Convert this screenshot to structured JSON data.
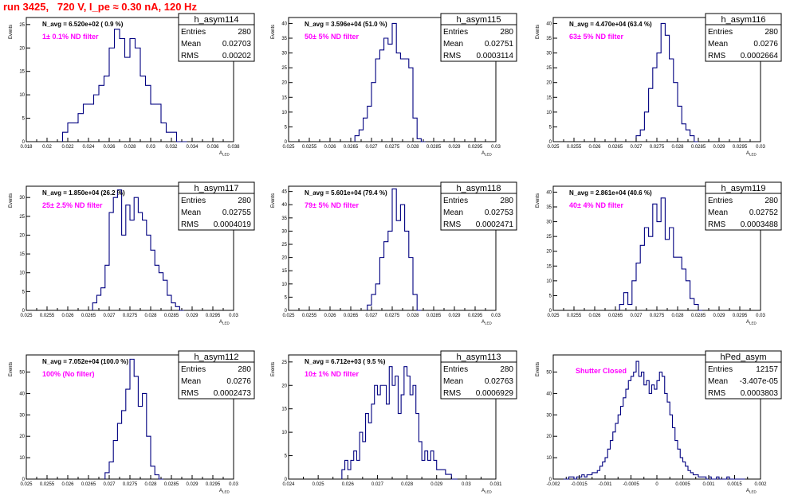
{
  "title": "run 3425,   720 V, I_pe ≈ 0.30 nA, 120 Hz",
  "stat_labels": {
    "entries": "Entries",
    "mean": "Mean",
    "rms": "RMS"
  },
  "colors": {
    "title": "#ff0000",
    "filter_label": "#ff00ff",
    "histogram": "#000080",
    "frame": "#000000"
  },
  "chart_data": [
    {
      "type": "histogram",
      "name": "h_asym114",
      "navg": "N_avg = 6.520e+02 ( 0.9 %)",
      "filter": "1± 0.1% ND filter",
      "stats": {
        "entries": "280",
        "mean": "0.02703",
        "rms": "0.00202"
      },
      "xlabel": "A_LED",
      "ylabel": "Events",
      "xlim": [
        0.018,
        0.038
      ],
      "ylim": [
        0,
        26.5
      ],
      "xticks": [
        0.018,
        0.02,
        0.022,
        0.024,
        0.026,
        0.028,
        0.03,
        0.032,
        0.034,
        0.036,
        0.038
      ],
      "xtick_labels": [
        "0.018",
        "0.02",
        "0.022",
        "0.024",
        "0.026",
        "0.028",
        "0.03",
        "0.032",
        "0.034",
        "0.036",
        "0.038"
      ],
      "yticks": [
        0,
        5,
        10,
        15,
        20,
        25
      ],
      "bins": [
        0.0215,
        0.022,
        0.0225,
        0.023,
        0.0235,
        0.024,
        0.0245,
        0.025,
        0.0255,
        0.026,
        0.0265,
        0.027,
        0.0275,
        0.028,
        0.0285,
        0.029,
        0.0295,
        0.03,
        0.0305,
        0.031,
        0.0315,
        0.032,
        0.0325,
        0.033
      ],
      "counts": [
        2,
        4,
        4,
        6,
        8,
        8,
        10,
        12,
        14,
        20,
        24,
        22,
        18,
        22,
        20,
        14,
        12,
        8,
        8,
        4,
        2,
        2,
        0,
        0
      ]
    },
    {
      "type": "histogram",
      "name": "h_asym115",
      "navg": "N_avg = 3.596e+04 (51.0 %)",
      "filter": "50± 5% ND filter",
      "stats": {
        "entries": "280",
        "mean": "0.02751",
        "rms": "0.0003114"
      },
      "xlabel": "A_LED",
      "ylabel": "Events",
      "xlim": [
        0.025,
        0.03
      ],
      "ylim": [
        0,
        42
      ],
      "xticks": [
        0.025,
        0.0255,
        0.026,
        0.0265,
        0.027,
        0.0275,
        0.028,
        0.0285,
        0.029,
        0.0295,
        0.03
      ],
      "xtick_labels": [
        "0.025",
        "0.0255",
        "0.026",
        "0.0265",
        "0.027",
        "0.0275",
        "0.028",
        "0.0285",
        "0.029",
        "0.0295",
        "0.03"
      ],
      "yticks": [
        0,
        5,
        10,
        15,
        20,
        25,
        30,
        35,
        40
      ],
      "bins": [
        0.0266,
        0.0267,
        0.0268,
        0.0269,
        0.027,
        0.0271,
        0.0272,
        0.0273,
        0.0274,
        0.0275,
        0.0276,
        0.0277,
        0.0278,
        0.0279,
        0.028,
        0.0281,
        0.0282
      ],
      "counts": [
        2,
        4,
        8,
        12,
        20,
        28,
        31,
        35,
        33,
        40,
        30,
        28,
        28,
        25,
        8,
        1,
        0
      ]
    },
    {
      "type": "histogram",
      "name": "h_asym116",
      "navg": "N_avg = 4.470e+04 (63.4 %)",
      "filter": "63± 5% ND filter",
      "stats": {
        "entries": "280",
        "mean": "0.0276",
        "rms": "0.0002664"
      },
      "xlabel": "A_LED",
      "ylabel": "Events",
      "xlim": [
        0.025,
        0.03
      ],
      "ylim": [
        0,
        42
      ],
      "xticks": [
        0.025,
        0.0255,
        0.026,
        0.0265,
        0.027,
        0.0275,
        0.028,
        0.0285,
        0.029,
        0.0295,
        0.03
      ],
      "xtick_labels": [
        "0.025",
        "0.0255",
        "0.026",
        "0.0265",
        "0.027",
        "0.0275",
        "0.028",
        "0.0285",
        "0.029",
        "0.0295",
        "0.03"
      ],
      "yticks": [
        0,
        5,
        10,
        15,
        20,
        25,
        30,
        35,
        40
      ],
      "bins": [
        0.027,
        0.0271,
        0.0272,
        0.0273,
        0.0274,
        0.0275,
        0.0276,
        0.0277,
        0.0278,
        0.0279,
        0.028,
        0.0281,
        0.0282,
        0.0283,
        0.0284
      ],
      "counts": [
        2,
        4,
        10,
        18,
        25,
        30,
        40,
        36,
        28,
        20,
        12,
        6,
        4,
        2,
        0
      ]
    },
    {
      "type": "histogram",
      "name": "h_asym117",
      "navg": "N_avg = 1.850e+04 (26.2 %)",
      "filter": "25± 2.5% ND filter",
      "stats": {
        "entries": "280",
        "mean": "0.02755",
        "rms": "0.0004019"
      },
      "xlabel": "A_LED",
      "ylabel": "Events",
      "xlim": [
        0.025,
        0.03
      ],
      "ylim": [
        0,
        33
      ],
      "xticks": [
        0.025,
        0.0255,
        0.026,
        0.0265,
        0.027,
        0.0275,
        0.028,
        0.0285,
        0.029,
        0.0295,
        0.03
      ],
      "xtick_labels": [
        "0.025",
        "0.0255",
        "0.026",
        "0.0265",
        "0.027",
        "0.0275",
        "0.028",
        "0.0285",
        "0.029",
        "0.0295",
        "0.03"
      ],
      "yticks": [
        0,
        5,
        10,
        15,
        20,
        25,
        30
      ],
      "bins": [
        0.0266,
        0.0267,
        0.0268,
        0.0269,
        0.027,
        0.0271,
        0.0272,
        0.0273,
        0.0274,
        0.0275,
        0.0276,
        0.0277,
        0.0278,
        0.0279,
        0.028,
        0.0281,
        0.0282,
        0.0283,
        0.0284,
        0.0285,
        0.0286,
        0.0287
      ],
      "counts": [
        2,
        4,
        6,
        12,
        26,
        30,
        32,
        20,
        28,
        24,
        30,
        26,
        24,
        20,
        16,
        12,
        10,
        8,
        4,
        2,
        1,
        0
      ]
    },
    {
      "type": "histogram",
      "name": "h_asym118",
      "navg": "N_avg = 5.601e+04 (79.4 %)",
      "filter": "79± 5% ND filter",
      "stats": {
        "entries": "280",
        "mean": "0.02753",
        "rms": "0.0002471"
      },
      "xlabel": "A_LED",
      "ylabel": "Events",
      "xlim": [
        0.025,
        0.03
      ],
      "ylim": [
        0,
        47
      ],
      "xticks": [
        0.025,
        0.0255,
        0.026,
        0.0265,
        0.027,
        0.0275,
        0.028,
        0.0285,
        0.029,
        0.0295,
        0.03
      ],
      "xtick_labels": [
        "0.025",
        "0.0255",
        "0.026",
        "0.0265",
        "0.027",
        "0.0275",
        "0.028",
        "0.0285",
        "0.029",
        "0.0295",
        "0.03"
      ],
      "yticks": [
        0,
        5,
        10,
        15,
        20,
        25,
        30,
        35,
        40,
        45
      ],
      "bins": [
        0.0269,
        0.027,
        0.0271,
        0.0272,
        0.0273,
        0.0274,
        0.0275,
        0.0276,
        0.0277,
        0.0278,
        0.0279,
        0.028,
        0.0281
      ],
      "counts": [
        2,
        6,
        10,
        20,
        26,
        30,
        46,
        34,
        40,
        30,
        20,
        6,
        0
      ]
    },
    {
      "type": "histogram",
      "name": "h_asym119",
      "navg": "N_avg = 2.861e+04 (40.6 %)",
      "filter": "40± 4% ND filter",
      "stats": {
        "entries": "280",
        "mean": "0.02752",
        "rms": "0.0003488"
      },
      "xlabel": "A_LED",
      "ylabel": "Events",
      "xlim": [
        0.025,
        0.03
      ],
      "ylim": [
        0,
        42
      ],
      "xticks": [
        0.025,
        0.0255,
        0.026,
        0.0265,
        0.027,
        0.0275,
        0.028,
        0.0285,
        0.029,
        0.0295,
        0.03
      ],
      "xtick_labels": [
        "0.025",
        "0.0255",
        "0.026",
        "0.0265",
        "0.027",
        "0.0275",
        "0.028",
        "0.0285",
        "0.029",
        "0.0295",
        "0.03"
      ],
      "yticks": [
        0,
        5,
        10,
        15,
        20,
        25,
        30,
        35,
        40
      ],
      "bins": [
        0.0266,
        0.0267,
        0.0268,
        0.0269,
        0.027,
        0.0271,
        0.0272,
        0.0273,
        0.0274,
        0.0275,
        0.0276,
        0.0277,
        0.0278,
        0.0279,
        0.028,
        0.0281,
        0.0282,
        0.0283,
        0.0284,
        0.0285
      ],
      "counts": [
        2,
        6,
        2,
        10,
        16,
        22,
        28,
        25,
        36,
        30,
        38,
        24,
        28,
        18,
        18,
        14,
        10,
        4,
        2,
        0
      ]
    },
    {
      "type": "histogram",
      "name": "h_asym112",
      "navg": "N_avg = 7.052e+04 (100.0 %)",
      "filter": "100% (No filter)",
      "stats": {
        "entries": "280",
        "mean": "0.0276",
        "rms": "0.0002473"
      },
      "xlabel": "A_LED",
      "ylabel": "Events",
      "xlim": [
        0.025,
        0.03
      ],
      "ylim": [
        0,
        58
      ],
      "xticks": [
        0.025,
        0.0255,
        0.026,
        0.0265,
        0.027,
        0.0275,
        0.028,
        0.0285,
        0.029,
        0.0295,
        0.03
      ],
      "xtick_labels": [
        "0.025",
        "0.0255",
        "0.026",
        "0.0265",
        "0.027",
        "0.0275",
        "0.028",
        "0.0285",
        "0.029",
        "0.0295",
        "0.03"
      ],
      "yticks": [
        0,
        10,
        20,
        30,
        40,
        50
      ],
      "bins": [
        0.0269,
        0.027,
        0.0271,
        0.0272,
        0.0273,
        0.0274,
        0.0275,
        0.0276,
        0.0277,
        0.0278,
        0.0279,
        0.028,
        0.0281,
        0.0282
      ],
      "counts": [
        3,
        8,
        18,
        26,
        32,
        42,
        56,
        48,
        34,
        40,
        20,
        6,
        2,
        0
      ]
    },
    {
      "type": "histogram",
      "name": "h_asym113",
      "navg": "N_avg = 6.712e+03 ( 9.5 %)",
      "filter": "10± 1% ND filter",
      "stats": {
        "entries": "280",
        "mean": "0.02763",
        "rms": "0.0006929"
      },
      "xlabel": "A_LED",
      "ylabel": "Events",
      "xlim": [
        0.024,
        0.031
      ],
      "ylim": [
        0,
        26.5
      ],
      "xticks": [
        0.024,
        0.025,
        0.026,
        0.027,
        0.028,
        0.029,
        0.03,
        0.031
      ],
      "xtick_labels": [
        "0.024",
        "0.025",
        "0.026",
        "0.027",
        "0.028",
        "0.029",
        "0.03",
        "0.031"
      ],
      "yticks": [
        0,
        5,
        10,
        15,
        20,
        25
      ],
      "bins": [
        0.0258,
        0.0259,
        0.026,
        0.0261,
        0.0262,
        0.0263,
        0.0264,
        0.0265,
        0.0266,
        0.0267,
        0.0268,
        0.0269,
        0.027,
        0.0271,
        0.0272,
        0.0273,
        0.0274,
        0.0275,
        0.0276,
        0.0277,
        0.0278,
        0.0279,
        0.028,
        0.0281,
        0.0282,
        0.0283,
        0.0284,
        0.0285,
        0.0286,
        0.0287,
        0.0288,
        0.0289,
        0.029,
        0.0291,
        0.0292,
        0.0293,
        0.0294,
        0.0295,
        0.0296
      ],
      "counts": [
        2,
        4,
        2,
        4,
        6,
        4,
        10,
        8,
        14,
        12,
        16,
        20,
        18,
        20,
        20,
        16,
        24,
        20,
        22,
        14,
        18,
        24,
        22,
        18,
        20,
        14,
        8,
        4,
        6,
        4,
        6,
        4,
        2,
        2,
        2,
        1,
        1,
        0,
        0
      ]
    },
    {
      "type": "histogram",
      "name": "hPed_asym",
      "navg": "",
      "filter": "Shutter Closed",
      "stats": {
        "entries": "12157",
        "mean": "-3.407e-05",
        "rms": "0.0003803"
      },
      "xlabel": "A_LED",
      "ylabel": "Events",
      "xlim": [
        -0.002,
        0.002
      ],
      "ylim": [
        0,
        58
      ],
      "xticks": [
        -0.002,
        -0.0015,
        -0.001,
        -0.0005,
        0,
        0.0005,
        0.001,
        0.0015,
        0.002
      ],
      "xtick_labels": [
        "-0.002",
        "-0.0015",
        "-0.001",
        "-0.0005",
        "0",
        "0.0005",
        "0.001",
        "0.0015",
        "0.002"
      ],
      "yticks": [
        0,
        10,
        20,
        30,
        40,
        50
      ],
      "bins": [
        -0.0018,
        -0.00175,
        -0.0017,
        -0.00165,
        -0.0016,
        -0.00155,
        -0.0015,
        -0.00145,
        -0.0014,
        -0.00135,
        -0.0013,
        -0.00125,
        -0.0012,
        -0.00115,
        -0.0011,
        -0.00105,
        -0.001,
        -0.00095,
        -0.0009,
        -0.00085,
        -0.0008,
        -0.00075,
        -0.0007,
        -0.00065,
        -0.0006,
        -0.00055,
        -0.0005,
        -0.00045,
        -0.0004,
        -0.00035,
        -0.0003,
        -0.00025,
        -0.0002,
        -0.00015,
        -0.0001,
        -5e-05,
        0,
        5e-05,
        0.0001,
        0.00015,
        0.0002,
        0.00025,
        0.0003,
        0.00035,
        0.0004,
        0.00045,
        0.0005,
        0.00055,
        0.0006,
        0.00065,
        0.0007,
        0.00075,
        0.0008,
        0.00085,
        0.0009,
        0.00095,
        0.001,
        0.00105,
        0.0011,
        0.00115,
        0.0012,
        0.00125,
        0.0013,
        0.00135,
        0.0014,
        0.00145,
        0.0015,
        0.00155,
        0.0016,
        0.00165
      ],
      "counts": [
        0,
        0,
        1,
        1,
        0,
        1,
        1,
        2,
        1,
        2,
        2,
        3,
        3,
        4,
        6,
        8,
        10,
        14,
        18,
        22,
        26,
        30,
        34,
        38,
        42,
        46,
        48,
        50,
        55,
        48,
        50,
        44,
        46,
        40,
        44,
        42,
        46,
        50,
        48,
        40,
        36,
        30,
        24,
        18,
        14,
        10,
        8,
        6,
        4,
        3,
        2,
        2,
        1,
        1,
        1,
        0,
        1,
        0,
        0,
        1,
        0,
        0,
        0,
        1,
        0,
        0,
        0,
        0,
        0,
        0
      ]
    }
  ]
}
